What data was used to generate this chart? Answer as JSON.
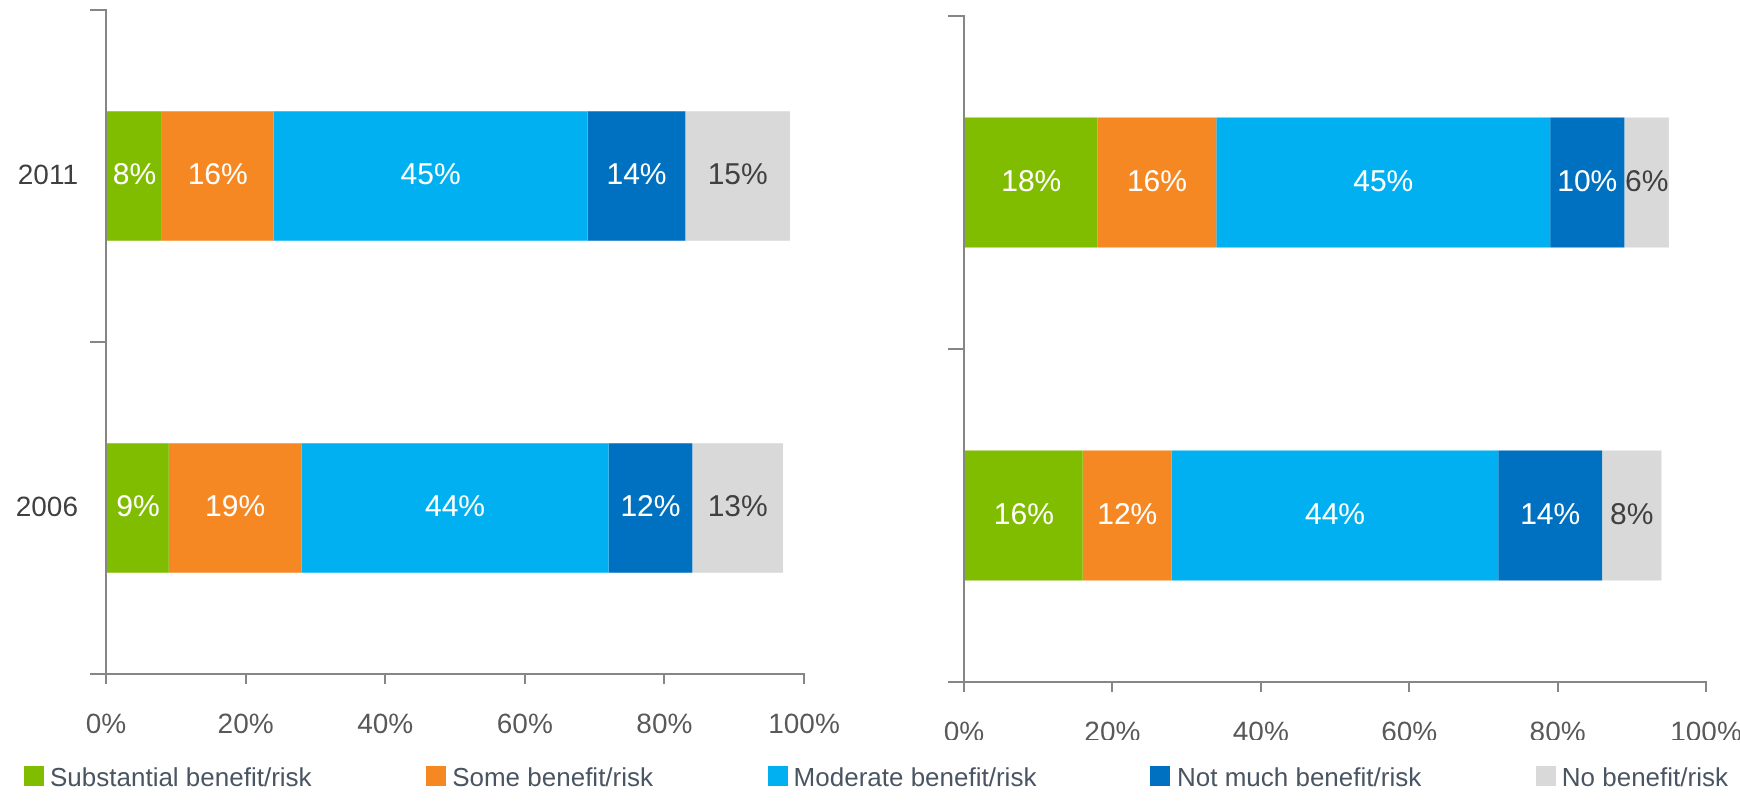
{
  "chart_data": [
    {
      "type": "bar",
      "orientation": "horizontal",
      "stacked": true,
      "categories": [
        "2011",
        "2006"
      ],
      "xlim": [
        0,
        100
      ],
      "xticks": [
        {
          "value": 0,
          "label": "0%"
        },
        {
          "value": 20,
          "label": "20%"
        },
        {
          "value": 40,
          "label": "40%"
        },
        {
          "value": 60,
          "label": "60%"
        },
        {
          "value": 80,
          "label": "80%"
        },
        {
          "value": 100,
          "label": "100%"
        }
      ],
      "legend": "bottom",
      "series": [
        {
          "name": "Substantial benefit/risk",
          "color": "#80bc00",
          "values": [
            8,
            9
          ],
          "value_labels": [
            "8%",
            "9%"
          ]
        },
        {
          "name": "Some benefit/risk",
          "color": "#f58823",
          "values": [
            16,
            19
          ],
          "value_labels": [
            "16%",
            "19%"
          ]
        },
        {
          "name": "Moderate benefit/risk",
          "color": "#00b0f0",
          "values": [
            45,
            44
          ],
          "value_labels": [
            "45%",
            "44%"
          ]
        },
        {
          "name": "Not much benefit/risk",
          "color": "#0070c0",
          "values": [
            14,
            12
          ],
          "value_labels": [
            "14%",
            "12%"
          ]
        },
        {
          "name": "No benefit/risk",
          "color": "#d9d9d9",
          "values": [
            15,
            13
          ],
          "value_labels": [
            "15%",
            "13%"
          ]
        }
      ]
    },
    {
      "type": "bar",
      "orientation": "horizontal",
      "stacked": true,
      "categories": [
        "2011",
        "2006"
      ],
      "tick_labels": "x",
      "xlim": [
        0,
        100
      ],
      "xticks": [
        {
          "value": 0,
          "label": "0%"
        },
        {
          "value": 20,
          "label": "20%"
        },
        {
          "value": 40,
          "label": "40%"
        },
        {
          "value": 60,
          "label": "60%"
        },
        {
          "value": 80,
          "label": "80%"
        },
        {
          "value": 100,
          "label": "100%"
        }
      ],
      "series": [
        {
          "color": "#80bc00",
          "values": [
            18,
            16
          ],
          "value_labels": [
            "18%",
            "16%"
          ]
        },
        {
          "color": "#f58823",
          "values": [
            16,
            12
          ],
          "value_labels": [
            "16%",
            "12%"
          ]
        },
        {
          "color": "#00b0f0",
          "values": [
            45,
            44
          ],
          "value_labels": [
            "45%",
            "44%"
          ]
        },
        {
          "color": "#0070c0",
          "values": [
            10,
            14
          ],
          "value_labels": [
            "10%",
            "14%"
          ]
        },
        {
          "color": "#d9d9d9",
          "values": [
            6,
            8
          ],
          "value_labels": [
            "6%",
            "8%"
          ]
        }
      ]
    }
  ]
}
